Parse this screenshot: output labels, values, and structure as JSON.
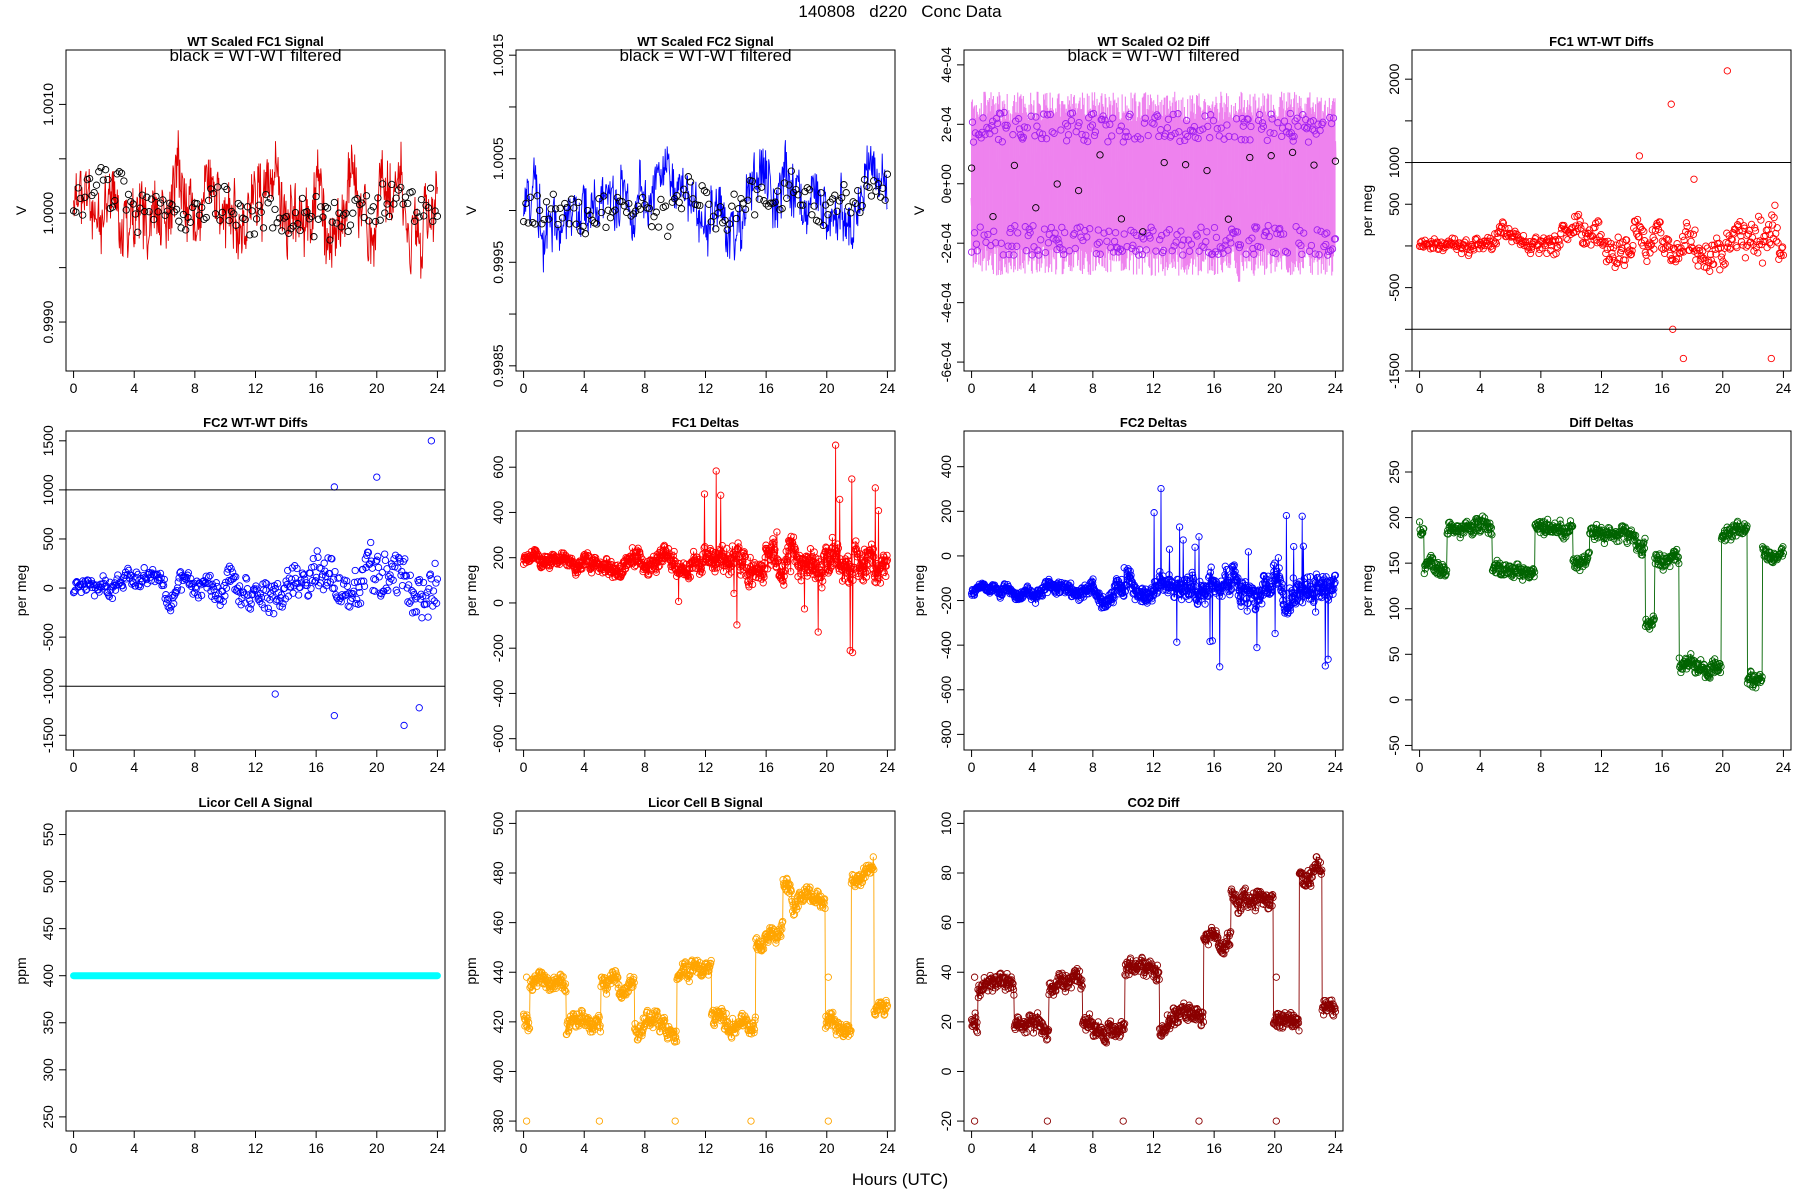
{
  "title": "140808   d220   Conc Data",
  "xlabel": "Hours (UTC)",
  "colors": {
    "fc1": "#ff0000",
    "fc1_line": "#e00000",
    "fc2": "#0000ff",
    "o2": "#ee82ee",
    "o2_pts": "#a020f0",
    "diff": "#006400",
    "licorA": "#00ffff",
    "licorB": "#ffa500",
    "co2": "#8b0000",
    "black": "#000000"
  },
  "chart_data": [
    {
      "id": "wt-fc1",
      "type": "line",
      "title": "WT Scaled FC1 Signal",
      "annotation": "black = WT-WT filtered",
      "ylabel": "V",
      "xlim": [
        -0.5,
        24.5
      ],
      "xticks": [
        0,
        4,
        8,
        12,
        16,
        20,
        24
      ],
      "ylim": [
        0.99855,
        1.0015
      ],
      "yticks": [
        0.999,
        0.9995,
        1.0,
        1.0005,
        1.001
      ],
      "ytick_labels": [
        "0.9990",
        "",
        "1.0000",
        "",
        "1.0010"
      ],
      "series": [
        {
          "name": "FC1 signal",
          "color": "fc1_line",
          "style": "line",
          "base": 1.0001,
          "amp": 0.00045,
          "seed": 11,
          "n": 700
        },
        {
          "name": "WT-WT filtered",
          "color": "black",
          "style": "pts",
          "base": 1.0001,
          "amp": 0.0003,
          "seed": 12,
          "n": 160
        }
      ]
    },
    {
      "id": "wt-fc2",
      "type": "line",
      "title": "WT Scaled FC2 Signal",
      "annotation": "black = WT-WT filtered",
      "ylabel": "V",
      "xlim": [
        -0.5,
        24.5
      ],
      "xticks": [
        0,
        4,
        8,
        12,
        16,
        20,
        24
      ],
      "ylim": [
        0.99845,
        1.00155
      ],
      "yticks": [
        0.9985,
        0.999,
        0.9995,
        1.0,
        1.0005,
        1.001,
        1.0015
      ],
      "ytick_labels": [
        "0.9985",
        "",
        "0.9995",
        "",
        "1.0005",
        "",
        "1.0015"
      ],
      "series": [
        {
          "name": "FC2 signal",
          "color": "fc2",
          "style": "line",
          "base": 1.0001,
          "amp": 0.0004,
          "seed": 21,
          "n": 700
        },
        {
          "name": "WT-WT filtered",
          "color": "black",
          "style": "pts",
          "base": 1.0001,
          "amp": 0.0003,
          "seed": 22,
          "n": 160
        }
      ]
    },
    {
      "id": "wt-o2",
      "type": "line",
      "title": "WT Scaled O2 Diff",
      "annotation": "black = WT-WT filtered",
      "ylabel": "V",
      "xlim": [
        -0.5,
        24.5
      ],
      "xticks": [
        0,
        4,
        8,
        12,
        16,
        20,
        24
      ],
      "ylim": [
        -0.00063,
        0.00045
      ],
      "yticks": [
        -0.0006,
        -0.0004,
        -0.0002,
        0,
        0.0002,
        0.0004
      ],
      "ytick_labels": [
        "-6e-04",
        "-4e-04",
        "-2e-04",
        "0e+00",
        "2e-04",
        "4e-04"
      ],
      "series": [
        {
          "name": "O2 diff",
          "color": "o2",
          "style": "band",
          "base": 0,
          "amp": 0.00022,
          "seed": 31,
          "n": 900
        },
        {
          "name": "O2 diff points",
          "color": "o2_pts",
          "style": "pts",
          "base": 0,
          "amp": 0.0002,
          "seed": 32,
          "n": 380,
          "twoLevel": 0.00019
        },
        {
          "name": "WT-WT filtered",
          "color": "black",
          "style": "pts",
          "base": 0,
          "amp": 0.0003,
          "seed": 33,
          "n": 18
        }
      ]
    },
    {
      "id": "fc1-wtwt",
      "type": "scatter",
      "title": "FC1 WT-WT Diffs",
      "ylabel": "per meg",
      "xlim": [
        -0.5,
        24.5
      ],
      "xticks": [
        0,
        4,
        8,
        12,
        16,
        20,
        24
      ],
      "ylim": [
        -1500,
        2350
      ],
      "yticks": [
        -1500,
        -1000,
        -500,
        0,
        500,
        1000,
        1500,
        2000
      ],
      "ytick_labels": [
        "-1500",
        "",
        "-500",
        "",
        "500",
        "1000",
        "",
        "2000"
      ],
      "hlines": [
        1000,
        -1000
      ],
      "series": [
        {
          "name": "FC1 WT-WT",
          "color": "fc1",
          "style": "scatter",
          "base": 0,
          "amp": 200,
          "seed": 41,
          "n": 470,
          "grow": true,
          "outliers": [
            [
              14.5,
              1080
            ],
            [
              16.6,
              1700
            ],
            [
              20.3,
              2100
            ],
            [
              16.7,
              -1000
            ],
            [
              17.4,
              -1350
            ],
            [
              23.2,
              -1350
            ],
            [
              18.1,
              800
            ]
          ]
        }
      ]
    },
    {
      "id": "fc2-wtwt",
      "type": "scatter",
      "title": "FC2 WT-WT Diffs",
      "ylabel": "per meg",
      "xlim": [
        -0.5,
        24.5
      ],
      "xticks": [
        0,
        4,
        8,
        12,
        16,
        20,
        24
      ],
      "ylim": [
        -1650,
        1600
      ],
      "yticks": [
        -1500,
        -1000,
        -500,
        0,
        500,
        1000,
        1500
      ],
      "ytick_labels": [
        "-1500",
        "-1000",
        "-500",
        "0",
        "500",
        "1000",
        "1500"
      ],
      "hlines": [
        1000,
        -1000
      ],
      "series": [
        {
          "name": "FC2 WT-WT",
          "color": "fc2",
          "style": "scatter",
          "base": 0,
          "amp": 200,
          "seed": 51,
          "n": 470,
          "grow": true,
          "outliers": [
            [
              13.3,
              -1080
            ],
            [
              17.2,
              1030
            ],
            [
              17.2,
              -1300
            ],
            [
              20.0,
              1130
            ],
            [
              21.8,
              -1400
            ],
            [
              22.8,
              -1220
            ],
            [
              23.6,
              1500
            ]
          ]
        }
      ]
    },
    {
      "id": "fc1-deltas",
      "type": "line",
      "title": "FC1 Deltas",
      "ylabel": "per meg",
      "xlim": [
        -0.5,
        24.5
      ],
      "xticks": [
        0,
        4,
        8,
        12,
        16,
        20,
        24
      ],
      "ylim": [
        -650,
        760
      ],
      "yticks": [
        -600,
        -400,
        -200,
        0,
        200,
        400,
        600
      ],
      "ytick_labels": [
        "-600",
        "-400",
        "-200",
        "0",
        "200",
        "400",
        "600"
      ],
      "series": [
        {
          "name": "FC1 deltas",
          "color": "fc1",
          "style": "linepts",
          "base": 180,
          "amp": 60,
          "seed": 61,
          "n": 900,
          "grow": true,
          "growAmp": 200
        }
      ]
    },
    {
      "id": "fc2-deltas",
      "type": "line",
      "title": "FC2 Deltas",
      "ylabel": "per meg",
      "xlim": [
        -0.5,
        24.5
      ],
      "xticks": [
        0,
        4,
        8,
        12,
        16,
        20,
        24
      ],
      "ylim": [
        -870,
        560
      ],
      "yticks": [
        -800,
        -600,
        -400,
        -200,
        0,
        200,
        400
      ],
      "ytick_labels": [
        "-800",
        "-600",
        "-400",
        "-200",
        "0",
        "200",
        "400"
      ],
      "series": [
        {
          "name": "FC2 deltas",
          "color": "fc2",
          "style": "linepts",
          "base": -150,
          "amp": 50,
          "seed": 71,
          "n": 900,
          "grow": true,
          "growAmp": 200
        }
      ]
    },
    {
      "id": "diff-deltas",
      "type": "line",
      "title": "Diff Deltas",
      "ylabel": "per meg",
      "xlim": [
        -0.5,
        24.5
      ],
      "xticks": [
        0,
        4,
        8,
        12,
        16,
        20,
        24
      ],
      "ylim": [
        -55,
        295
      ],
      "yticks": [
        -50,
        0,
        50,
        100,
        150,
        200,
        250
      ],
      "ytick_labels": [
        "-50",
        "0",
        "50",
        "100",
        "150",
        "200",
        "250"
      ],
      "series": [
        {
          "name": "Diff deltas",
          "color": "diff",
          "style": "linepts",
          "seed": 81,
          "n": 700,
          "levels": [
            [
              0,
              0.3,
              190
            ],
            [
              0.3,
              1.8,
              145
            ],
            [
              1.8,
              4.8,
              190
            ],
            [
              4.8,
              5.3,
              145
            ],
            [
              5.3,
              7.6,
              135
            ],
            [
              7.6,
              10.1,
              188
            ],
            [
              10.1,
              11.2,
              150
            ],
            [
              11.2,
              14.9,
              180
            ],
            [
              14.9,
              15.5,
              90
            ],
            [
              15.5,
              17.1,
              150
            ],
            [
              17.1,
              19.9,
              40
            ],
            [
              19.9,
              21.6,
              185
            ],
            [
              21.6,
              22.6,
              20
            ],
            [
              22.6,
              24,
              165
            ]
          ],
          "amp": 12
        }
      ]
    },
    {
      "id": "licor-a",
      "type": "line",
      "title": "Licor Cell A Signal",
      "ylabel": "ppm",
      "xlim": [
        -0.5,
        24.5
      ],
      "xticks": [
        0,
        4,
        8,
        12,
        16,
        20,
        24
      ],
      "ylim": [
        235,
        575
      ],
      "yticks": [
        250,
        300,
        350,
        400,
        450,
        500,
        550
      ],
      "ytick_labels": [
        "250",
        "300",
        "350",
        "400",
        "450",
        "500",
        "550"
      ],
      "series": [
        {
          "name": "Licor A",
          "color": "licorA",
          "style": "flat",
          "base": 400,
          "n": 400
        }
      ]
    },
    {
      "id": "licor-b",
      "type": "line",
      "title": "Licor Cell B Signal",
      "ylabel": "ppm",
      "xlim": [
        -0.5,
        24.5
      ],
      "xticks": [
        0,
        4,
        8,
        12,
        16,
        20,
        24
      ],
      "ylim": [
        376,
        505
      ],
      "yticks": [
        380,
        400,
        420,
        440,
        460,
        480,
        500
      ],
      "ytick_labels": [
        "380",
        "400",
        "420",
        "440",
        "460",
        "480",
        "500"
      ],
      "series": [
        {
          "name": "Licor B",
          "color": "licorB",
          "style": "linepts",
          "seed": 91,
          "n": 800,
          "offset": 0,
          "levels": [
            [
              0,
              0.4,
              420
            ],
            [
              0.4,
              2.8,
              435
            ],
            [
              2.8,
              5.1,
              419
            ],
            [
              5.1,
              7.3,
              436
            ],
            [
              7.3,
              10.1,
              419
            ],
            [
              10.1,
              12.4,
              442
            ],
            [
              12.4,
              14.8,
              421
            ],
            [
              14.8,
              15.3,
              419
            ],
            [
              15.3,
              17.1,
              452
            ],
            [
              17.1,
              19.9,
              469
            ],
            [
              19.9,
              21.6,
              419
            ],
            [
              21.6,
              23.1,
              480
            ],
            [
              23.1,
              24,
              424
            ]
          ],
          "amp": 5,
          "spikes": [
            [
              0.2,
              380
            ],
            [
              5.0,
              380
            ],
            [
              10.0,
              380
            ],
            [
              15.0,
              380
            ],
            [
              20.1,
              380
            ],
            [
              0.2,
              438
            ],
            [
              20.1,
              438
            ]
          ]
        }
      ]
    },
    {
      "id": "co2-diff",
      "type": "line",
      "title": "CO2 Diff",
      "ylabel": "ppm",
      "xlim": [
        -0.5,
        24.5
      ],
      "xticks": [
        0,
        4,
        8,
        12,
        16,
        20,
        24
      ],
      "ylim": [
        -24,
        105
      ],
      "yticks": [
        -20,
        0,
        20,
        40,
        60,
        80,
        100
      ],
      "ytick_labels": [
        "-20",
        "0",
        "20",
        "40",
        "60",
        "80",
        "100"
      ],
      "series": [
        {
          "name": "CO2 diff",
          "color": "co2",
          "style": "linepts",
          "seed": 101,
          "n": 800,
          "levels": [
            [
              0,
              0.4,
              20
            ],
            [
              0.4,
              2.8,
              35
            ],
            [
              2.8,
              5.1,
              19
            ],
            [
              5.1,
              7.3,
              36
            ],
            [
              7.3,
              10.1,
              19
            ],
            [
              10.1,
              12.4,
              42
            ],
            [
              12.4,
              14.8,
              21
            ],
            [
              14.8,
              15.3,
              19
            ],
            [
              15.3,
              17.1,
              52
            ],
            [
              17.1,
              19.9,
              69
            ],
            [
              19.9,
              21.6,
              19
            ],
            [
              21.6,
              23.1,
              80
            ],
            [
              23.1,
              24,
              24
            ]
          ],
          "amp": 5,
          "spikes": [
            [
              0.2,
              -20
            ],
            [
              5.0,
              -20
            ],
            [
              10.0,
              -20
            ],
            [
              15.0,
              -20
            ],
            [
              20.1,
              -20
            ],
            [
              0.2,
              38
            ],
            [
              20.1,
              38
            ]
          ]
        }
      ]
    }
  ]
}
